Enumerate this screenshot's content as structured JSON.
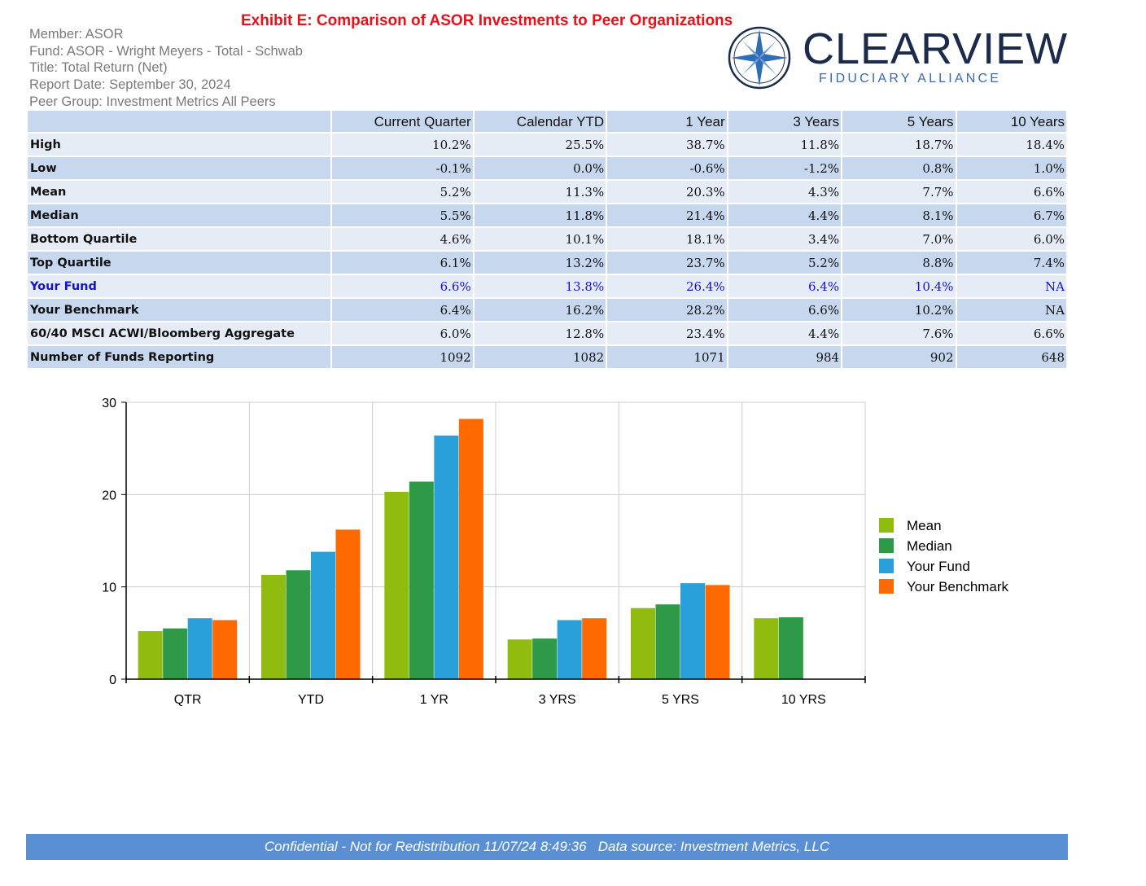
{
  "header": {
    "title": "Exhibit E: Comparison of ASOR Investments to Peer Organizations",
    "meta": [
      "Member: ASOR",
      "Fund: ASOR - Wright Meyers - Total - Schwab",
      "Title: Total Return (Net)",
      "Report Date: September 30, 2024",
      "Peer Group: Investment Metrics All Peers"
    ]
  },
  "logo": {
    "name": "CLEARVIEW",
    "tagline": "FIDUCIARY ALLIANCE",
    "icon": "compass-star-icon"
  },
  "table": {
    "columns": [
      "",
      "Current Quarter",
      "Calendar YTD",
      "1 Year",
      "3 Years",
      "5 Years",
      "10 Years"
    ],
    "rows": [
      {
        "label": "High",
        "values": [
          "10.2%",
          "25.5%",
          "38.7%",
          "11.8%",
          "18.7%",
          "18.4%"
        ]
      },
      {
        "label": "Low",
        "values": [
          "-0.1%",
          "0.0%",
          "-0.6%",
          "-1.2%",
          "0.8%",
          "1.0%"
        ]
      },
      {
        "label": "Mean",
        "values": [
          "5.2%",
          "11.3%",
          "20.3%",
          "4.3%",
          "7.7%",
          "6.6%"
        ]
      },
      {
        "label": "Median",
        "values": [
          "5.5%",
          "11.8%",
          "21.4%",
          "4.4%",
          "8.1%",
          "6.7%"
        ]
      },
      {
        "label": "Bottom Quartile",
        "values": [
          "4.6%",
          "10.1%",
          "18.1%",
          "3.4%",
          "7.0%",
          "6.0%"
        ]
      },
      {
        "label": "Top Quartile",
        "values": [
          "6.1%",
          "13.2%",
          "23.7%",
          "5.2%",
          "8.8%",
          "7.4%"
        ]
      },
      {
        "label": "Your Fund",
        "values": [
          "6.6%",
          "13.8%",
          "26.4%",
          "6.4%",
          "10.4%",
          "NA"
        ],
        "highlight": true
      },
      {
        "label": "Your Benchmark",
        "values": [
          "6.4%",
          "16.2%",
          "28.2%",
          "6.6%",
          "10.2%",
          "NA"
        ]
      },
      {
        "label": "60/40 MSCI ACWI/Bloomberg Aggregate",
        "values": [
          "6.0%",
          "12.8%",
          "23.4%",
          "4.4%",
          "7.6%",
          "6.6%"
        ]
      },
      {
        "label": "Number of Funds Reporting",
        "values": [
          "1092",
          "1082",
          "1071",
          "984",
          "902",
          "648"
        ]
      }
    ]
  },
  "chart_data": {
    "type": "bar",
    "categories": [
      "QTR",
      "YTD",
      "1 YR",
      "3 YRS",
      "5 YRS",
      "10 YRS"
    ],
    "series": [
      {
        "name": "Mean",
        "values": [
          5.2,
          11.3,
          20.3,
          4.3,
          7.7,
          6.6
        ],
        "color": "#8fbc0e"
      },
      {
        "name": "Median",
        "values": [
          5.5,
          11.8,
          21.4,
          4.4,
          8.1,
          6.7
        ],
        "color": "#2e9a48"
      },
      {
        "name": "Your Fund",
        "values": [
          6.6,
          13.8,
          26.4,
          6.4,
          10.4,
          null
        ],
        "color": "#29a0da"
      },
      {
        "name": "Your Benchmark",
        "values": [
          6.4,
          16.2,
          28.2,
          6.6,
          10.2,
          null
        ],
        "color": "#ff6a00"
      }
    ],
    "yticks": [
      0,
      10,
      20,
      30
    ],
    "ylim": [
      0,
      30
    ],
    "grid": true,
    "legend_position": "right"
  },
  "footer": {
    "text": "Confidential - Not for Redistribution 11/07/24 8:49:36   Data source: Investment Metrics, LLC"
  }
}
